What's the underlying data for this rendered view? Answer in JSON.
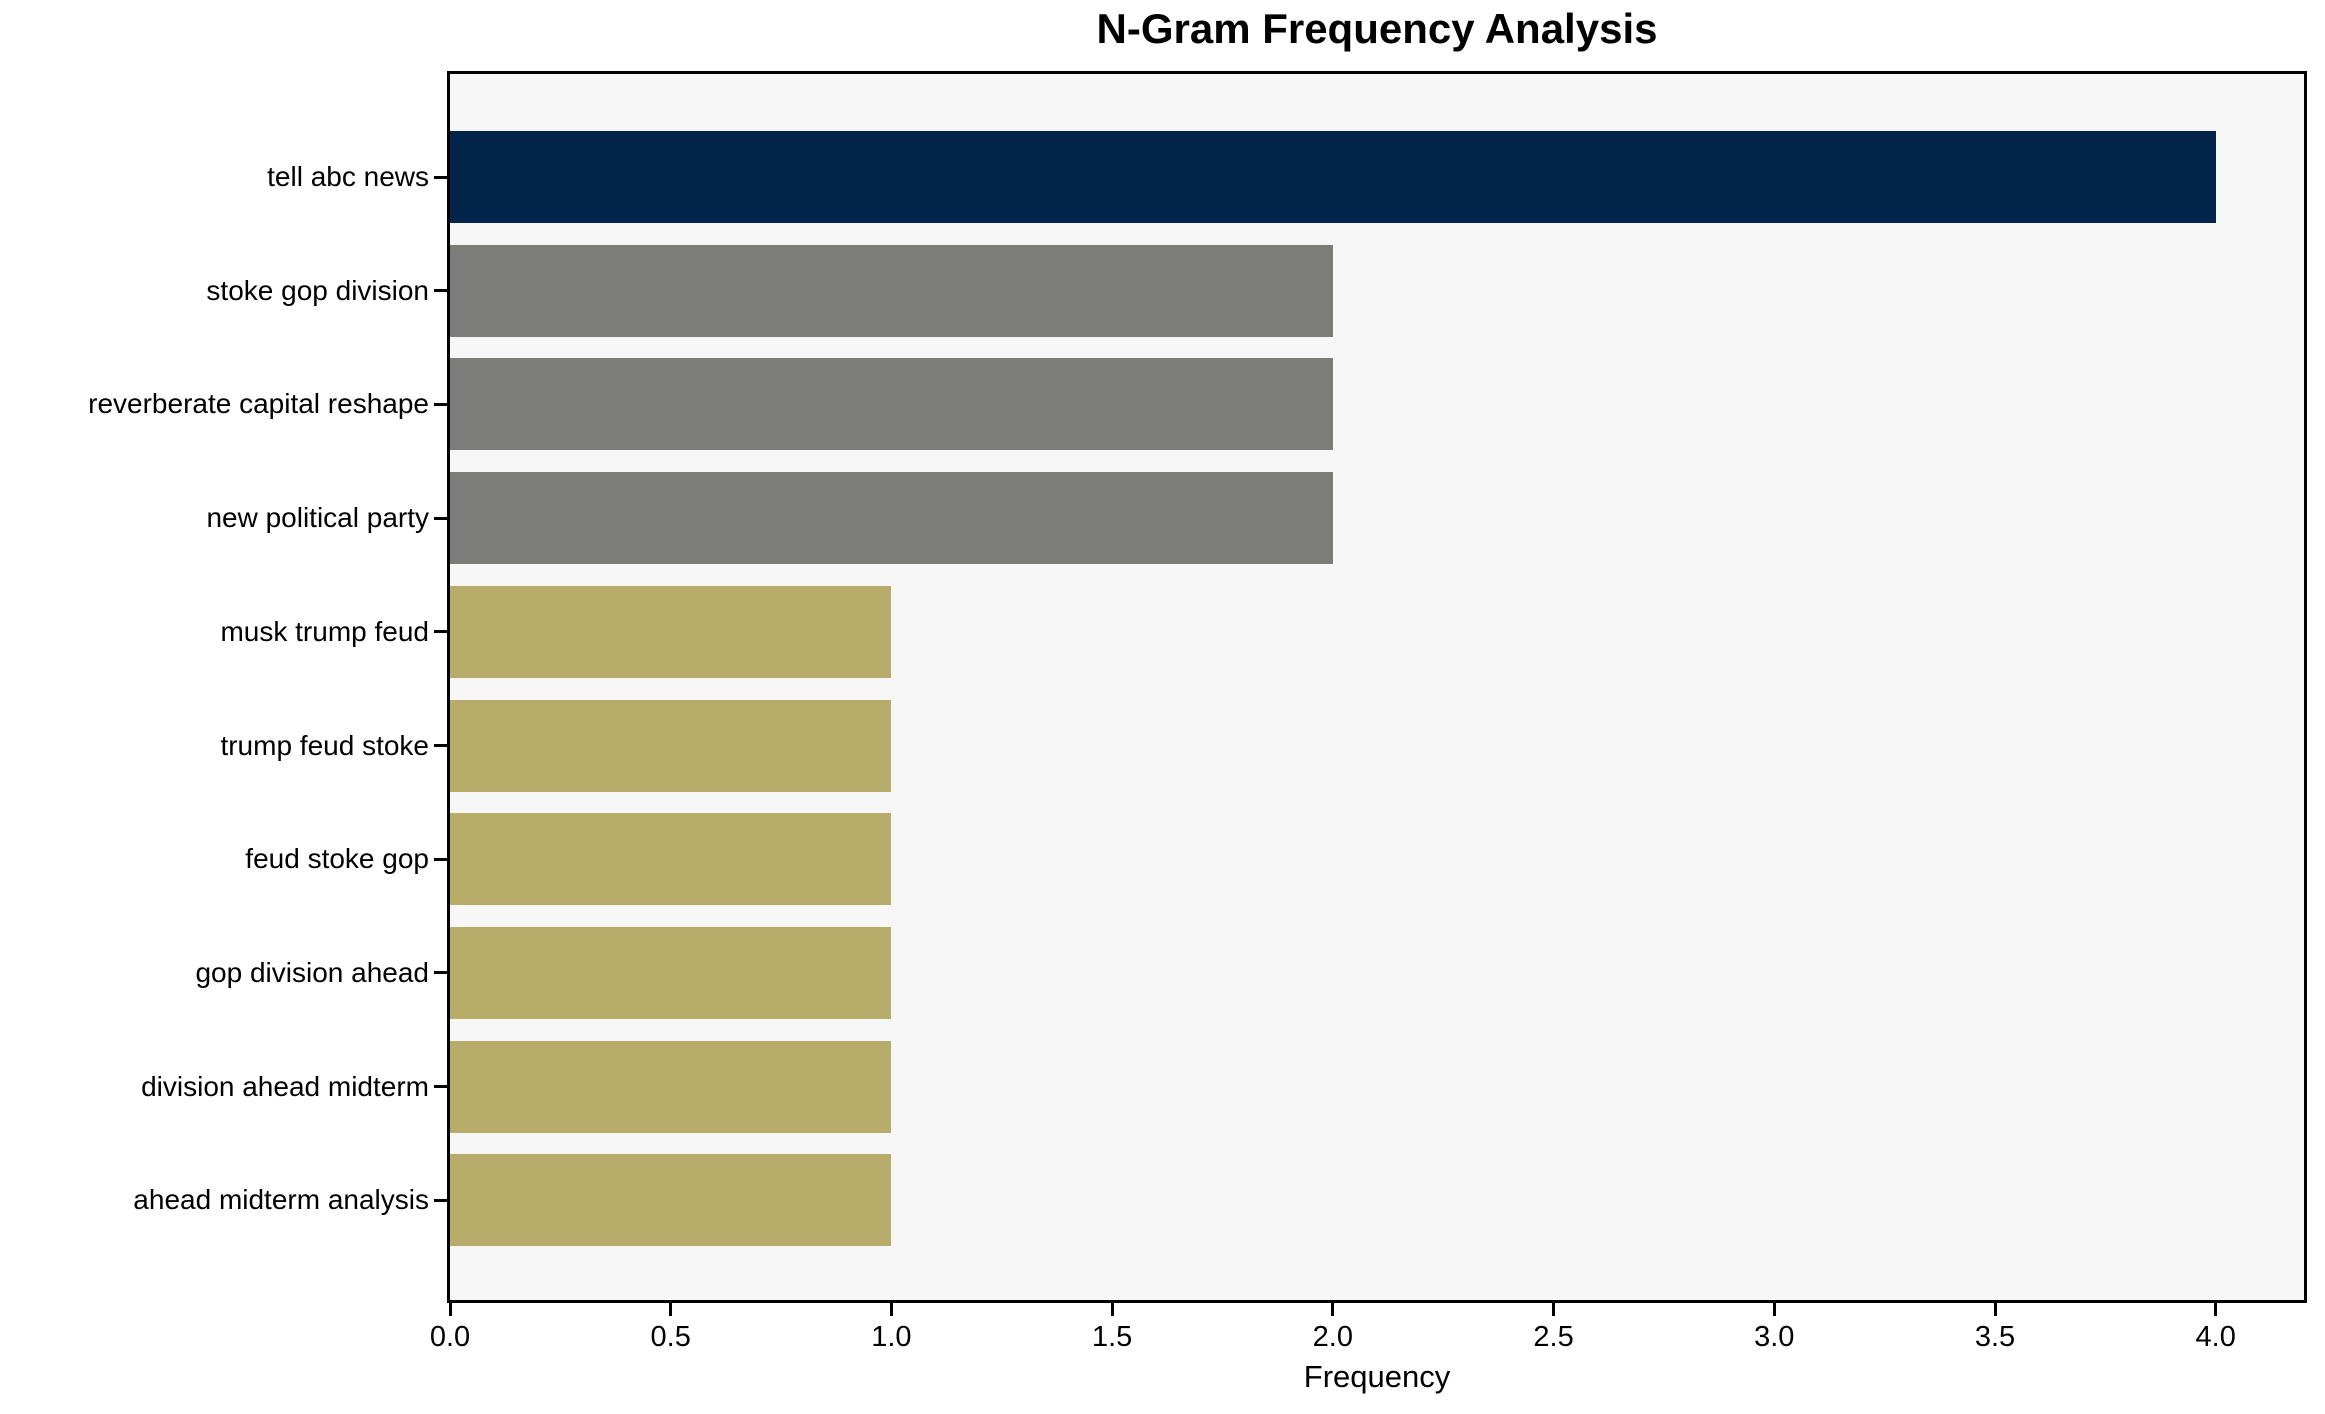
{
  "chart_data": {
    "type": "bar",
    "orientation": "horizontal",
    "title": "N-Gram Frequency Analysis",
    "xlabel": "Frequency",
    "categories": [
      "tell abc news",
      "stoke gop division",
      "reverberate capital reshape",
      "new political party",
      "musk trump feud",
      "trump feud stoke",
      "feud stoke gop",
      "gop division ahead",
      "division ahead midterm",
      "ahead midterm analysis"
    ],
    "values": [
      4,
      2,
      2,
      2,
      1,
      1,
      1,
      1,
      1,
      1
    ],
    "bar_colors": [
      "#02244a",
      "#7b7b77",
      "#7b7b77",
      "#7b7b77",
      "#b8ac6b",
      "#b8ac6b",
      "#b8ac6b",
      "#b8ac6b",
      "#b8ac6b",
      "#b8ac6b"
    ],
    "xlim": [
      0,
      4.2
    ],
    "xticks": [
      0,
      0.5,
      1,
      1.5,
      2,
      2.5,
      3,
      3.5,
      4
    ],
    "xtick_labels": [
      "0.0",
      "0.5",
      "1.0",
      "1.5",
      "2.0",
      "2.5",
      "3.0",
      "3.5",
      "4.0"
    ],
    "grid": false,
    "plot_background": "#f7f7f7",
    "figure_background": "#ffffff",
    "spine_color": "#000000",
    "text_color": "#000000"
  }
}
